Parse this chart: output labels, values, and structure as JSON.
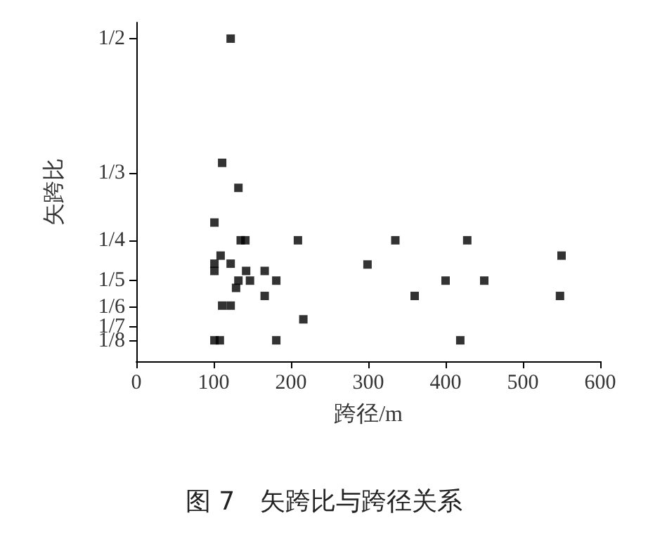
{
  "chart_data": {
    "type": "scatter",
    "xlabel": "跨径/m",
    "ylabel": "矢跨比",
    "annotations": [
      "图 7　矢跨比与跨径关系"
    ],
    "x": [
      122,
      111,
      132,
      101,
      135,
      141,
      209,
      109,
      101,
      101,
      122,
      142,
      166,
      132,
      147,
      181,
      129,
      166,
      111,
      122,
      216,
      101,
      108,
      181,
      335,
      428,
      550,
      299,
      400,
      450,
      360,
      548,
      419
    ],
    "values": [
      0.5,
      0.346,
      0.315,
      0.272,
      0.25,
      0.25,
      0.25,
      0.231,
      0.221,
      0.212,
      0.221,
      0.212,
      0.212,
      0.2,
      0.2,
      0.2,
      0.191,
      0.181,
      0.169,
      0.169,
      0.152,
      0.126,
      0.126,
      0.126,
      0.25,
      0.25,
      0.231,
      0.22,
      0.2,
      0.2,
      0.181,
      0.181,
      0.126
    ],
    "color": "#000000",
    "marker": "square",
    "grid": false,
    "xlim": [
      0,
      600
    ],
    "xticks": [
      0,
      100,
      200,
      300,
      400,
      500,
      600
    ],
    "ylim": [
      0.1,
      0.52
    ],
    "yticks": [
      {
        "value": 0.5,
        "label": "1/2"
      },
      {
        "value": 0.3333,
        "label": "1/3"
      },
      {
        "value": 0.25,
        "label": "1/4"
      },
      {
        "value": 0.2,
        "label": "1/5"
      },
      {
        "value": 0.1667,
        "label": "1/6"
      },
      {
        "value": 0.1429,
        "label": "1/7"
      },
      {
        "value": 0.125,
        "label": "1/8"
      }
    ]
  }
}
